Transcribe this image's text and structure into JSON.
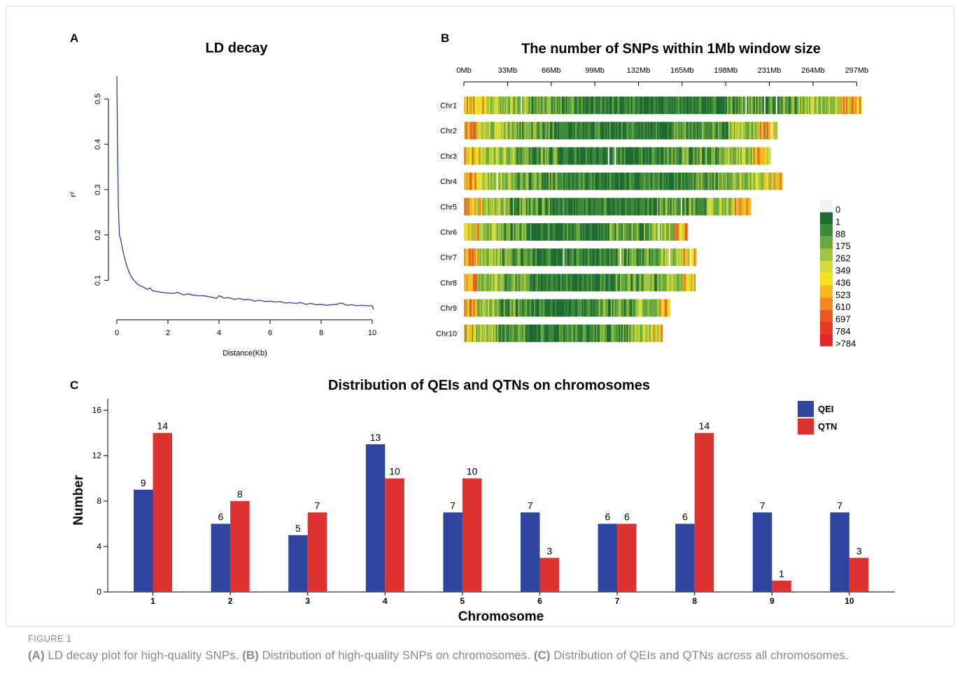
{
  "figure": {
    "label": "FIGURE 1",
    "caption": [
      {
        "tag": "(A)",
        "text": " LD decay plot for high-quality SNPs. "
      },
      {
        "tag": "(B)",
        "text": " Distribution of high-quality SNPs on chromosomes. "
      },
      {
        "tag": "(C)",
        "text": " Distribution of QEIs and QTNs across all chromosomes."
      }
    ]
  },
  "chart_data": [
    {
      "panel": "A",
      "type": "line",
      "title": "LD decay",
      "xlabel": "Distance(Kb)",
      "ylabel": "r²",
      "xlim": [
        0,
        10
      ],
      "ylim": [
        0.03,
        0.55
      ],
      "xticks": [
        0,
        2,
        4,
        6,
        8,
        10
      ],
      "yticks": [
        0.1,
        0.2,
        0.3,
        0.4,
        0.5
      ],
      "line_color": "#3b4aa0",
      "x": [
        0,
        0.03,
        0.06,
        0.1,
        0.15,
        0.2,
        0.3,
        0.4,
        0.5,
        0.6,
        0.7,
        0.8,
        0.9,
        1.0,
        1.2,
        1.3,
        1.4,
        1.5,
        1.6,
        1.8,
        2.0,
        2.2,
        2.4,
        2.6,
        2.8,
        3.0,
        3.2,
        3.4,
        3.6,
        3.8,
        3.9,
        4.0,
        4.2,
        4.4,
        4.6,
        4.8,
        5.0,
        5.2,
        5.4,
        5.6,
        5.8,
        6.0,
        6.2,
        6.4,
        6.6,
        6.8,
        7.0,
        7.2,
        7.4,
        7.6,
        7.8,
        8.0,
        8.2,
        8.4,
        8.6,
        8.8,
        9.0,
        9.2,
        9.4,
        9.6,
        9.8,
        10.0,
        10.05
      ],
      "y": [
        0.55,
        0.38,
        0.26,
        0.2,
        0.19,
        0.175,
        0.15,
        0.13,
        0.115,
        0.105,
        0.098,
        0.092,
        0.088,
        0.086,
        0.08,
        0.083,
        0.077,
        0.076,
        0.075,
        0.073,
        0.072,
        0.071,
        0.073,
        0.068,
        0.07,
        0.067,
        0.066,
        0.066,
        0.064,
        0.062,
        0.06,
        0.066,
        0.061,
        0.062,
        0.058,
        0.06,
        0.057,
        0.058,
        0.054,
        0.056,
        0.053,
        0.054,
        0.052,
        0.053,
        0.05,
        0.051,
        0.049,
        0.051,
        0.047,
        0.049,
        0.046,
        0.047,
        0.045,
        0.046,
        0.047,
        0.05,
        0.045,
        0.046,
        0.044,
        0.045,
        0.044,
        0.044,
        0.036
      ]
    },
    {
      "panel": "B",
      "type": "heatmap",
      "title": "The number of SNPs within 1Mb window size",
      "xticks": [
        "0Mb",
        "33Mb",
        "66Mb",
        "99Mb",
        "132Mb",
        "165Mb",
        "198Mb",
        "231Mb",
        "264Mb",
        "297Mb"
      ],
      "xtick_values_mb": [
        0,
        33,
        66,
        99,
        132,
        165,
        198,
        231,
        264,
        297
      ],
      "chromosomes": [
        {
          "name": "Chr1",
          "length_mb": 301
        },
        {
          "name": "Chr2",
          "length_mb": 237
        },
        {
          "name": "Chr3",
          "length_mb": 232
        },
        {
          "name": "Chr4",
          "length_mb": 241
        },
        {
          "name": "Chr5",
          "length_mb": 217
        },
        {
          "name": "Chr6",
          "length_mb": 169
        },
        {
          "name": "Chr7",
          "length_mb": 176
        },
        {
          "name": "Chr8",
          "length_mb": 175
        },
        {
          "name": "Chr9",
          "length_mb": 156
        },
        {
          "name": "Chr10",
          "length_mb": 150
        }
      ],
      "legend": {
        "labels": [
          "0",
          "1",
          "88",
          "175",
          "262",
          "349",
          "436",
          "523",
          "610",
          "697",
          "784",
          ">784"
        ],
        "colors": [
          "#f2f2f2",
          "#1e6b33",
          "#3f8a3a",
          "#69a83f",
          "#a3c440",
          "#d7dc3a",
          "#f4e21c",
          "#f7b81e",
          "#f08a20",
          "#ea5a22",
          "#e63a25",
          "#e5262a"
        ]
      }
    },
    {
      "panel": "C",
      "type": "bar",
      "title": "Distribution of QEIs and QTNs on chromosomes",
      "xlabel": "Chromosome",
      "ylabel": "Number",
      "ylim": [
        0,
        17
      ],
      "yticks": [
        0,
        4,
        8,
        12,
        16
      ],
      "categories": [
        "1",
        "2",
        "3",
        "4",
        "5",
        "6",
        "7",
        "8",
        "9",
        "10"
      ],
      "series": [
        {
          "name": "QEI",
          "color": "#2e45a0",
          "values": [
            9,
            6,
            5,
            13,
            7,
            7,
            6,
            6,
            7,
            7
          ]
        },
        {
          "name": "QTN",
          "color": "#dc3330",
          "values": [
            14,
            8,
            7,
            10,
            10,
            3,
            6,
            14,
            1,
            3
          ]
        }
      ],
      "legend_position": "top-right"
    }
  ]
}
